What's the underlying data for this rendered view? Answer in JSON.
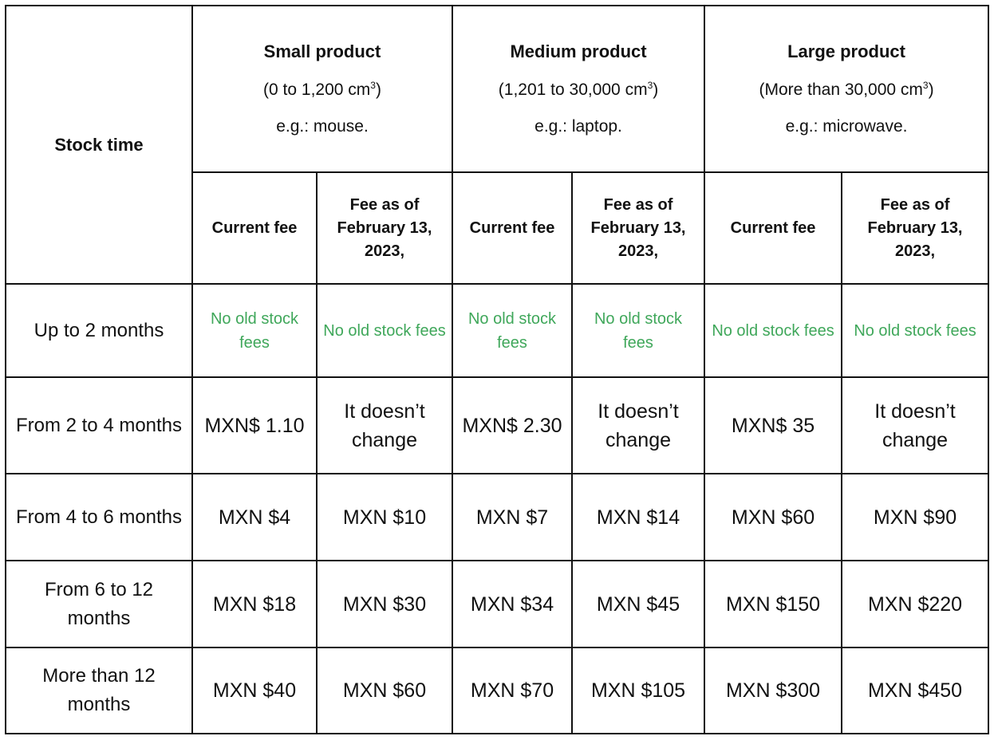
{
  "table": {
    "stock_time_header": "Stock time",
    "groups": [
      {
        "title": "Small product",
        "range_prefix": "(0 to 1,200 cm",
        "range_sup": "3",
        "range_suffix": ")",
        "example": "e.g.: mouse."
      },
      {
        "title": "Medium product",
        "range_prefix": "(1,201 to 30,000 cm",
        "range_sup": "3",
        "range_suffix": ")",
        "example": "e.g.: laptop."
      },
      {
        "title": "Large product",
        "range_prefix": "(More than 30,000 cm",
        "range_sup": "3",
        "range_suffix": ")",
        "example": "e.g.: microwave."
      }
    ],
    "subheaders": [
      "Current fee",
      "Fee as of February 13, 2023,",
      "Current fee",
      "Fee as of February 13, 2023,",
      "Current fee",
      "Fee as of February 13, 2023,"
    ],
    "rows": [
      {
        "label": "Up to 2 months",
        "cells": [
          "No old stock fees",
          "No old stock fees",
          "No old stock fees",
          "No old stock fees",
          "No old stock fees",
          "No old stock fees"
        ]
      },
      {
        "label": "From 2 to 4 months",
        "cells": [
          "MXN$ 1.10",
          "It doesn’t change",
          "MXN$ 2.30",
          "It doesn’t change",
          "MXN$ 35",
          "It doesn’t change"
        ]
      },
      {
        "label": "From 4 to 6 months",
        "cells": [
          "MXN $4",
          "MXN $10",
          "MXN $7",
          "MXN $14",
          "MXN $60",
          "MXN $90"
        ]
      },
      {
        "label": "From 6 to 12 months",
        "cells": [
          "MXN $18",
          "MXN $30",
          "MXN $34",
          "MXN $45",
          "MXN $150",
          "MXN $220"
        ]
      },
      {
        "label": "More than 12 months",
        "cells": [
          "MXN $40",
          "MXN $60",
          "MXN $70",
          "MXN $105",
          "MXN $300",
          "MXN $450"
        ]
      }
    ],
    "colors": {
      "border": "#111111",
      "no_fee_text": "#3fa75a"
    }
  }
}
